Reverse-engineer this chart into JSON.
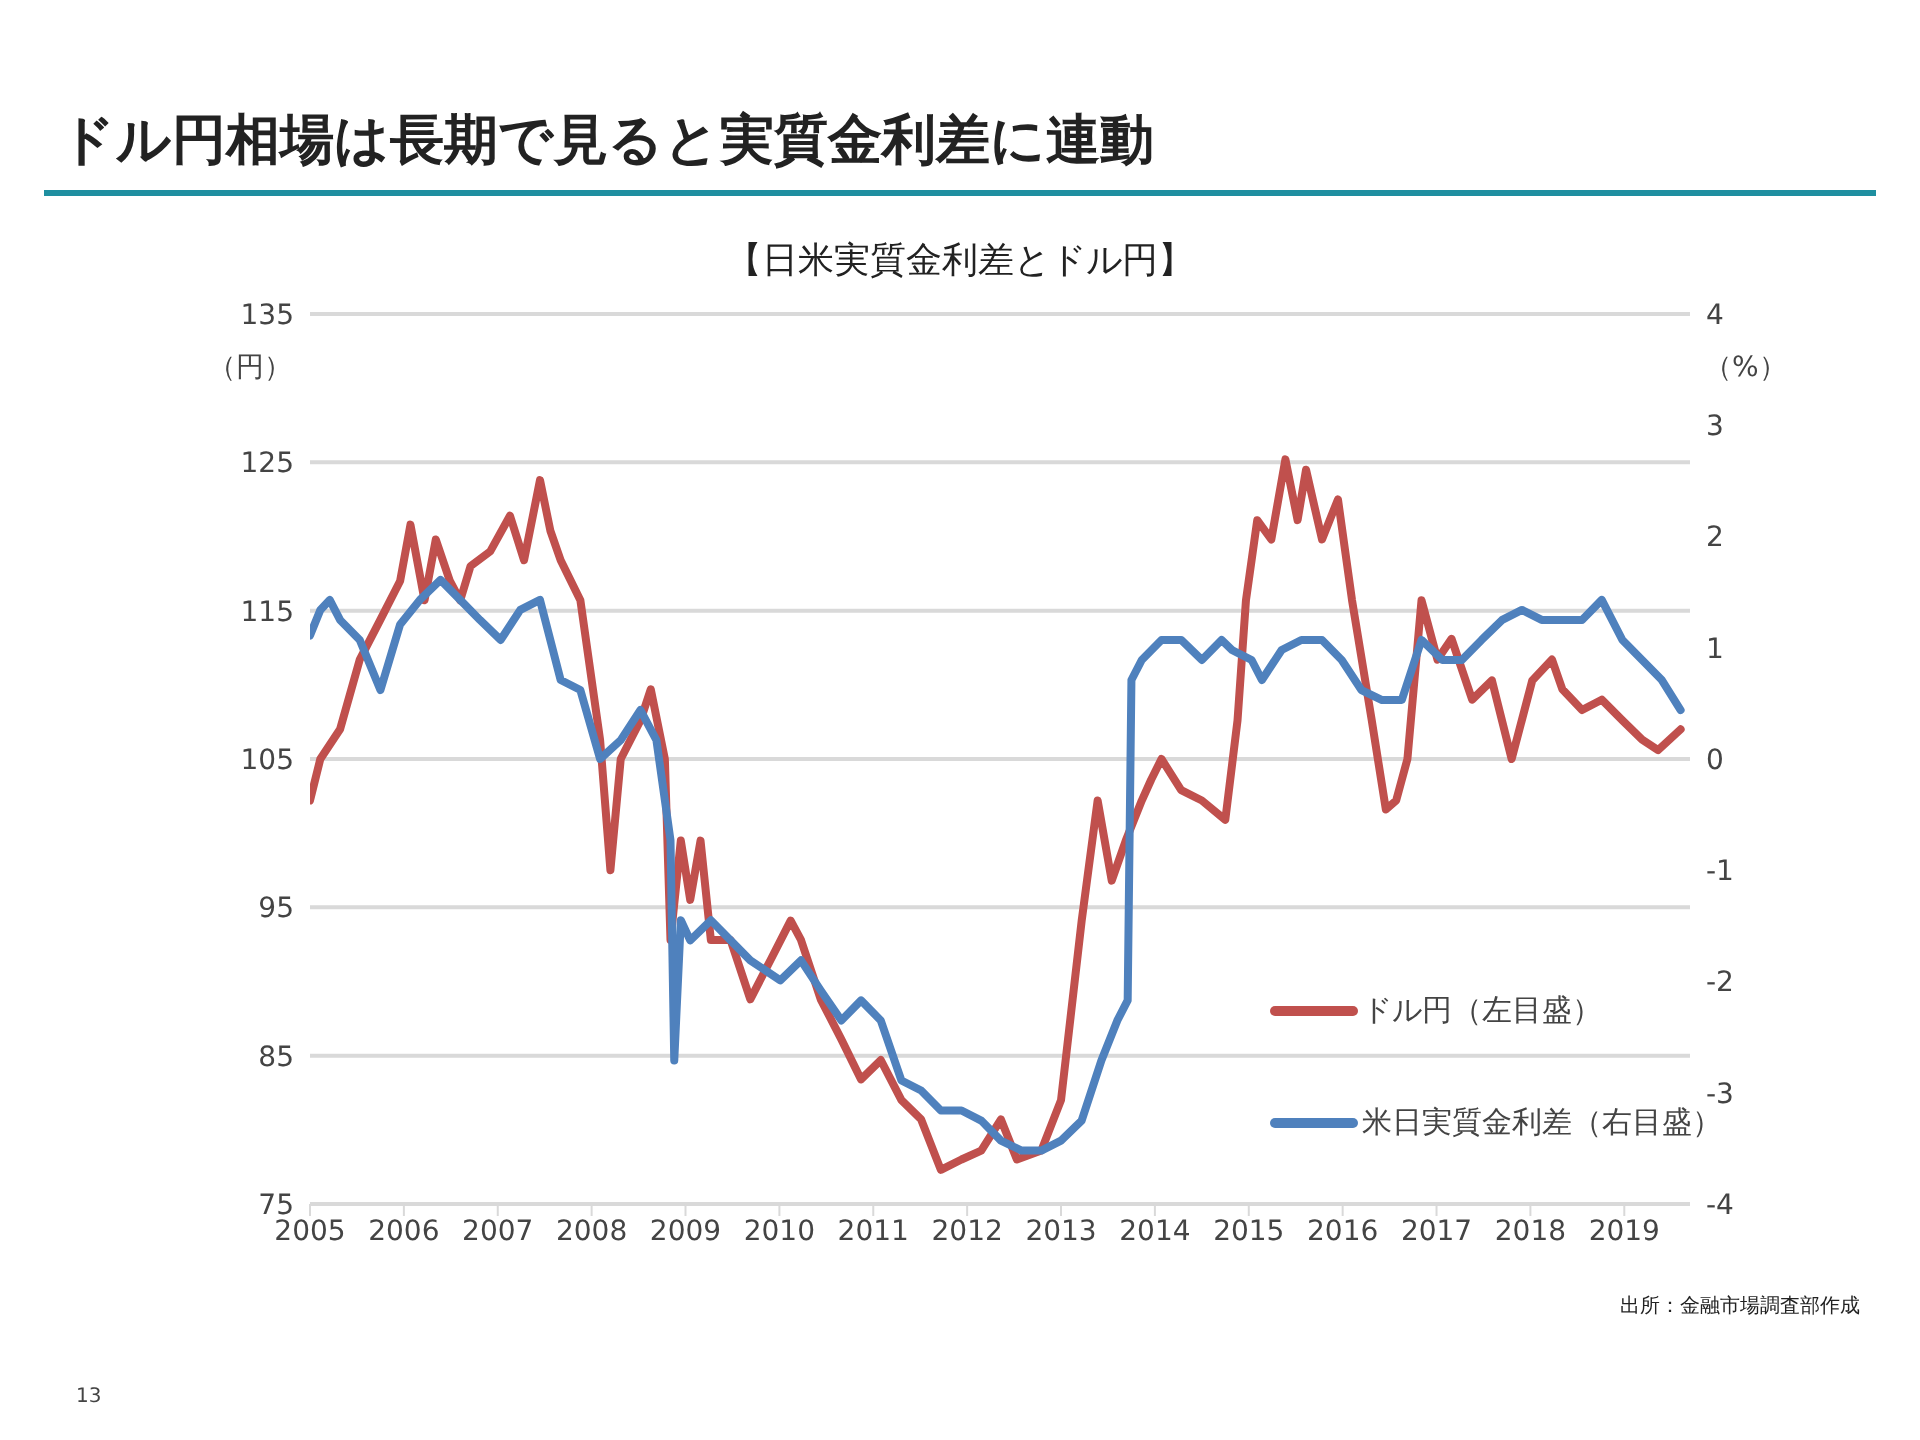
{
  "chart_data": {
    "type": "line",
    "title": "ドル円相場は長期で見ると実質金利差に連動",
    "subtitle": "【日米実質金利差とドル円】",
    "ylabel": "（円）",
    "y2label": "（%）",
    "xlim": [
      2005,
      2019.7
    ],
    "xticks": [
      2005,
      2006,
      2007,
      2008,
      2009,
      2010,
      2011,
      2012,
      2013,
      2014,
      2015,
      2016,
      2017,
      2018,
      2019
    ],
    "ylim": [
      75,
      135
    ],
    "yticks": [
      75,
      85,
      95,
      105,
      115,
      125,
      135
    ],
    "y2lim": [
      -4,
      4
    ],
    "y2ticks": [
      -4,
      -3,
      -2,
      -1,
      0,
      1,
      2,
      3,
      4
    ],
    "grid": "y",
    "legend": "bottom right",
    "marker": "none",
    "line_style": "solid",
    "series": [
      {
        "name": "ドル円（左目盛）",
        "color": "#c0504d",
        "x": [
          2005.0,
          2005.11,
          2005.32,
          2005.53,
          2005.75,
          2005.96,
          2006.07,
          2006.22,
          2006.34,
          2006.49,
          2006.6,
          2006.71,
          2006.92,
          2007.13,
          2007.28,
          2007.45,
          2007.56,
          2007.67,
          2007.88,
          2008.09,
          2008.2,
          2008.31,
          2008.52,
          2008.63,
          2008.78,
          2008.84,
          2008.95,
          2009.05,
          2009.16,
          2009.27,
          2009.48,
          2009.69,
          2009.91,
          2010.12,
          2010.23,
          2010.44,
          2010.66,
          2010.87,
          2011.08,
          2011.3,
          2011.51,
          2011.72,
          2011.94,
          2012.15,
          2012.36,
          2012.53,
          2012.79,
          2013.0,
          2013.22,
          2013.39,
          2013.54,
          2013.69,
          2013.86,
          2013.96,
          2014.07,
          2014.28,
          2014.5,
          2014.75,
          2014.88,
          2014.97,
          2015.09,
          2015.24,
          2015.39,
          2015.52,
          2015.61,
          2015.78,
          2015.95,
          2016.1,
          2016.31,
          2016.46,
          2016.57,
          2016.69,
          2016.84,
          2017.01,
          2017.16,
          2017.38,
          2017.59,
          2017.8,
          2018.02,
          2018.23,
          2018.34,
          2018.55,
          2018.76,
          2018.98,
          2019.19,
          2019.36,
          2019.6
        ],
        "values": [
          102.2,
          105,
          107,
          111.7,
          114.4,
          117,
          120.8,
          115.7,
          119.8,
          117,
          115.7,
          118,
          119,
          121.4,
          118.4,
          123.8,
          120.4,
          118.4,
          115.7,
          106.3,
          97.5,
          105,
          107.6,
          109.7,
          105,
          92.8,
          99.5,
          95.5,
          99.5,
          92.8,
          92.8,
          88.8,
          91.5,
          94.1,
          92.8,
          88.8,
          86.1,
          83.4,
          84.7,
          82,
          80.7,
          77.3,
          78,
          78.6,
          80.7,
          78,
          78.6,
          82,
          94.1,
          102.2,
          96.8,
          99.5,
          102.2,
          103.6,
          105,
          102.9,
          102.2,
          100.9,
          107.6,
          115.7,
          121.1,
          119.8,
          125.2,
          121.1,
          124.5,
          119.8,
          122.5,
          115.7,
          107.6,
          101.6,
          102.2,
          105,
          115.7,
          111.7,
          113.1,
          109,
          110.3,
          105,
          110.3,
          111.7,
          109.7,
          108.3,
          109,
          107.6,
          106.3,
          105.6,
          107
        ]
      },
      {
        "name": "米日実質金利差（右目盛）",
        "color": "#4f81bd",
        "axis": "y2",
        "x": [
          2005.0,
          2005.11,
          2005.21,
          2005.32,
          2005.53,
          2005.75,
          2005.96,
          2006.17,
          2006.39,
          2006.6,
          2006.81,
          2007.03,
          2007.24,
          2007.45,
          2007.67,
          2007.88,
          2008.09,
          2008.31,
          2008.52,
          2008.69,
          2008.84,
          2008.88,
          2008.95,
          2009.05,
          2009.27,
          2009.48,
          2009.69,
          2010.01,
          2010.23,
          2010.44,
          2010.66,
          2010.87,
          2011.08,
          2011.3,
          2011.51,
          2011.72,
          2011.94,
          2012.15,
          2012.36,
          2012.58,
          2012.79,
          2013.0,
          2013.22,
          2013.43,
          2013.6,
          2013.71,
          2013.75,
          2013.86,
          2014.07,
          2014.28,
          2014.5,
          2014.71,
          2014.82,
          2015.03,
          2015.14,
          2015.35,
          2015.56,
          2015.78,
          2015.99,
          2016.2,
          2016.42,
          2016.63,
          2016.84,
          2017.06,
          2017.27,
          2017.48,
          2017.7,
          2017.91,
          2018.12,
          2018.34,
          2018.55,
          2018.76,
          2018.98,
          2019.19,
          2019.4,
          2019.6
        ],
        "values": [
          1.11,
          1.34,
          1.43,
          1.25,
          1.07,
          0.62,
          1.21,
          1.43,
          1.61,
          1.43,
          1.25,
          1.07,
          1.34,
          1.43,
          0.71,
          0.62,
          0,
          0.17,
          0.44,
          0.17,
          -0.73,
          -2.71,
          -1.45,
          -1.63,
          -1.45,
          -1.63,
          -1.81,
          -1.99,
          -1.81,
          -2.08,
          -2.35,
          -2.17,
          -2.35,
          -2.89,
          -2.98,
          -3.16,
          -3.16,
          -3.25,
          -3.43,
          -3.52,
          -3.52,
          -3.43,
          -3.25,
          -2.71,
          -2.35,
          -2.17,
          0.71,
          0.89,
          1.07,
          1.07,
          0.89,
          1.07,
          0.98,
          0.89,
          0.71,
          0.98,
          1.07,
          1.07,
          0.89,
          0.62,
          0.53,
          0.53,
          1.07,
          0.89,
          0.89,
          1.07,
          1.25,
          1.34,
          1.25,
          1.25,
          1.25,
          1.43,
          1.07,
          0.89,
          0.71,
          0.44
        ]
      }
    ],
    "annotations": [
      "出所：金融市場調査部作成",
      "13"
    ]
  }
}
